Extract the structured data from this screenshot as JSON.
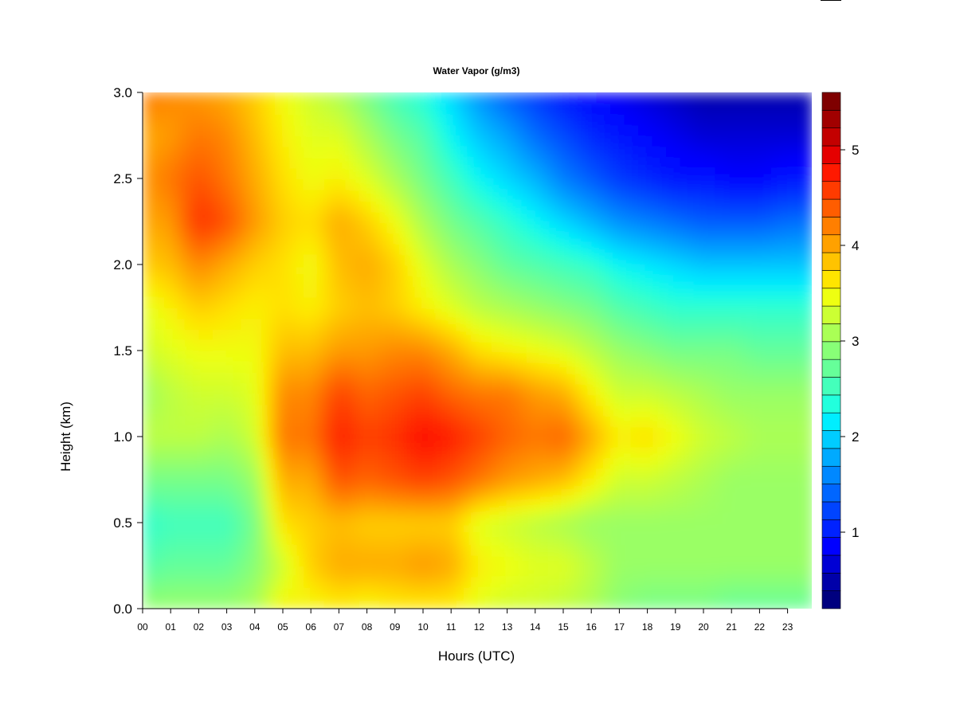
{
  "chart_data": {
    "type": "heatmap",
    "title": "Water Vapor (g/m3)",
    "xlabel": "Hours (UTC)",
    "ylabel": "Height (km)",
    "xlim": [
      0,
      23.9
    ],
    "ylim": [
      0.0,
      3.0
    ],
    "x_ticks": [
      "00",
      "01",
      "02",
      "03",
      "04",
      "05",
      "06",
      "07",
      "08",
      "09",
      "10",
      "11",
      "12",
      "13",
      "14",
      "15",
      "16",
      "17",
      "18",
      "19",
      "20",
      "21",
      "22",
      "23"
    ],
    "y_ticks": [
      "0.0",
      "0.5",
      "1.0",
      "1.5",
      "2.0",
      "2.5",
      "3.0"
    ],
    "colorbar": {
      "range": [
        0.2,
        5.6
      ],
      "ticks": [
        "1",
        "2",
        "3",
        "4",
        "5"
      ],
      "colors": [
        "#00007f",
        "#0000a9",
        "#0000d4",
        "#0000ff",
        "#0022ff",
        "#0044ff",
        "#0066ff",
        "#0088ff",
        "#00aaff",
        "#00ccff",
        "#00eeff",
        "#22ffdd",
        "#44ffbb",
        "#66ff99",
        "#88ff77",
        "#aaff55",
        "#ccff33",
        "#eeff11",
        "#ffe500",
        "#ffc300",
        "#ffa100",
        "#ff7f00",
        "#ff5d00",
        "#ff3b00",
        "#ff1900",
        "#e50000",
        "#c30000",
        "#a10000",
        "#7f0000"
      ]
    },
    "hours": [
      0,
      1,
      2,
      3,
      4,
      5,
      6,
      7,
      8,
      9,
      10,
      11,
      12,
      13,
      14,
      15,
      16,
      17,
      18,
      19,
      20,
      21,
      22,
      23
    ],
    "heights": [
      0.0,
      0.25,
      0.5,
      0.75,
      1.0,
      1.25,
      1.5,
      1.75,
      2.0,
      2.25,
      2.5,
      2.75,
      3.0
    ],
    "values": [
      [
        3.0,
        2.6,
        2.4,
        2.8,
        3.2,
        3.0,
        3.3,
        3.4,
        3.8,
        4.0,
        4.1,
        4.0,
        4.3
      ],
      [
        3.0,
        2.7,
        2.5,
        2.8,
        3.2,
        3.2,
        3.4,
        3.6,
        3.9,
        4.1,
        4.3,
        4.1,
        4.2
      ],
      [
        3.0,
        2.7,
        2.5,
        2.8,
        3.2,
        3.3,
        3.5,
        3.8,
        4.2,
        4.7,
        4.5,
        4.3,
        4.1
      ],
      [
        3.0,
        2.7,
        2.5,
        2.8,
        3.1,
        3.3,
        3.5,
        3.7,
        4.0,
        4.5,
        4.3,
        4.2,
        4.0
      ],
      [
        3.1,
        2.9,
        2.8,
        3.0,
        3.3,
        3.4,
        3.5,
        3.6,
        3.8,
        4.1,
        4.0,
        3.9,
        3.8
      ],
      [
        3.6,
        3.3,
        3.7,
        4.0,
        4.3,
        4.2,
        3.9,
        3.7,
        3.7,
        3.8,
        3.7,
        3.6,
        3.5
      ],
      [
        3.5,
        3.8,
        3.8,
        4.0,
        4.3,
        4.2,
        3.9,
        3.6,
        3.5,
        3.7,
        3.5,
        3.4,
        3.3
      ],
      [
        3.6,
        4.0,
        3.9,
        4.5,
        4.8,
        4.6,
        4.1,
        3.8,
        3.9,
        4.0,
        3.6,
        3.4,
        3.1
      ],
      [
        3.5,
        4.0,
        3.8,
        4.4,
        4.6,
        4.4,
        4.1,
        3.9,
        4.0,
        3.8,
        3.4,
        3.1,
        2.8
      ],
      [
        3.6,
        4.0,
        3.8,
        4.5,
        4.7,
        4.5,
        4.2,
        3.8,
        3.8,
        3.5,
        3.1,
        2.8,
        2.5
      ],
      [
        3.6,
        4.1,
        3.8,
        4.6,
        4.9,
        4.6,
        4.2,
        3.6,
        3.4,
        3.1,
        2.8,
        2.6,
        2.3
      ],
      [
        3.6,
        4.0,
        3.8,
        4.5,
        4.8,
        4.4,
        4.0,
        3.4,
        3.1,
        2.8,
        2.5,
        2.2,
        2.0
      ],
      [
        3.4,
        3.6,
        3.4,
        4.3,
        4.6,
        4.3,
        3.7,
        3.2,
        2.9,
        2.6,
        2.2,
        1.9,
        1.6
      ],
      [
        3.3,
        3.5,
        3.3,
        4.1,
        4.4,
        4.3,
        3.6,
        3.1,
        2.7,
        2.4,
        2.0,
        1.7,
        1.3
      ],
      [
        3.3,
        3.4,
        3.2,
        4.0,
        4.3,
        4.1,
        3.5,
        3.0,
        2.6,
        2.2,
        1.8,
        1.4,
        1.1
      ],
      [
        3.2,
        3.4,
        3.1,
        3.9,
        4.4,
        4.0,
        3.4,
        2.9,
        2.5,
        2.0,
        1.5,
        1.2,
        0.9
      ],
      [
        3.1,
        3.2,
        3.0,
        3.6,
        4.0,
        3.6,
        3.2,
        2.8,
        2.4,
        1.8,
        1.3,
        1.0,
        0.8
      ],
      [
        2.9,
        3.0,
        3.0,
        3.3,
        3.6,
        3.3,
        3.0,
        2.6,
        2.2,
        1.6,
        1.1,
        0.9,
        0.7
      ],
      [
        2.8,
        3.0,
        3.0,
        3.3,
        3.7,
        3.3,
        2.9,
        2.5,
        2.1,
        1.5,
        1.0,
        0.8,
        0.6
      ],
      [
        2.8,
        3.0,
        3.0,
        3.2,
        3.5,
        3.2,
        2.8,
        2.4,
        2.0,
        1.4,
        0.9,
        0.7,
        0.5
      ],
      [
        2.8,
        3.0,
        3.0,
        3.1,
        3.3,
        3.1,
        2.8,
        2.4,
        1.9,
        1.3,
        0.9,
        0.6,
        0.4
      ],
      [
        2.7,
        3.0,
        3.0,
        3.0,
        3.2,
        3.0,
        2.8,
        2.4,
        1.9,
        1.3,
        0.8,
        0.6,
        0.4
      ],
      [
        2.7,
        3.0,
        3.0,
        3.0,
        3.1,
        3.0,
        2.7,
        2.4,
        1.9,
        1.3,
        0.8,
        0.6,
        0.4
      ],
      [
        2.7,
        3.0,
        3.0,
        3.0,
        3.1,
        3.0,
        2.7,
        2.4,
        1.9,
        1.4,
        0.9,
        0.6,
        0.4
      ]
    ]
  }
}
